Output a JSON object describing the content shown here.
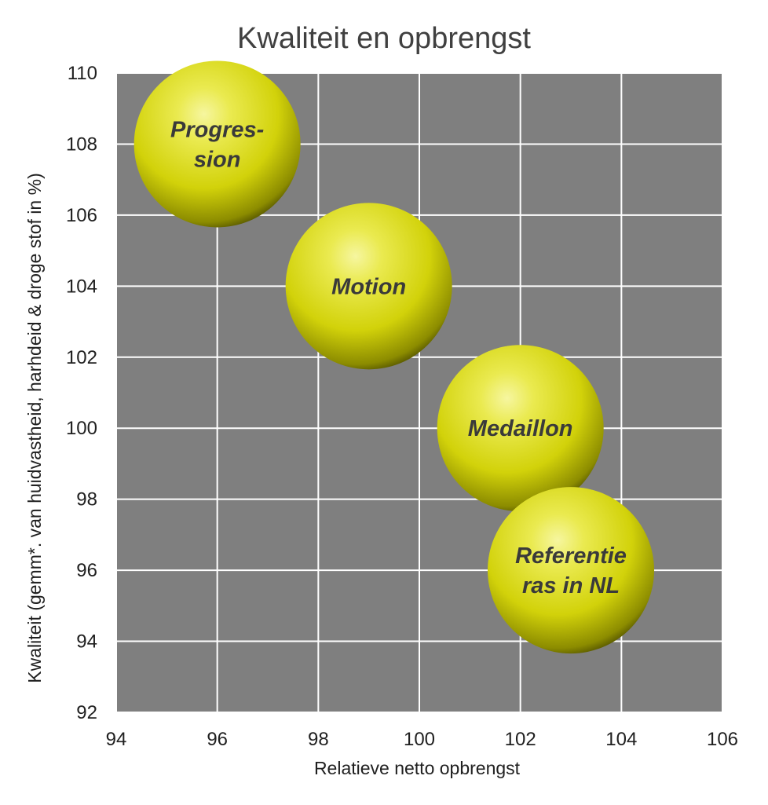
{
  "chart_data": {
    "type": "bubble",
    "title": "Kwaliteit en opbrengst",
    "xlabel": "Relatieve netto opbrengst",
    "ylabel": "Kwaliteit (gemm*. van huidvastheid, harhdeid & droge stof in %)",
    "xlim": [
      94,
      106
    ],
    "ylim": [
      92,
      110
    ],
    "xticks": [
      94,
      96,
      98,
      100,
      102,
      104,
      106
    ],
    "yticks": [
      92,
      94,
      96,
      98,
      100,
      102,
      104,
      106,
      108,
      110
    ],
    "grid": true,
    "points": [
      {
        "label_lines": [
          "Progres-",
          "sion"
        ],
        "x": 96,
        "y": 108
      },
      {
        "label_lines": [
          "Motion"
        ],
        "x": 99,
        "y": 104
      },
      {
        "label_lines": [
          "Medaillon"
        ],
        "x": 102,
        "y": 100
      },
      {
        "label_lines": [
          "Referentie",
          "ras in NL"
        ],
        "x": 103,
        "y": 96
      }
    ]
  },
  "colors": {
    "plot_background": "#7f7f7f",
    "grid": "#ffffff",
    "bubble_highlight": "#f6f6a0",
    "bubble_base": "#d2d20a",
    "bubble_shadow": "#4a4a00"
  }
}
